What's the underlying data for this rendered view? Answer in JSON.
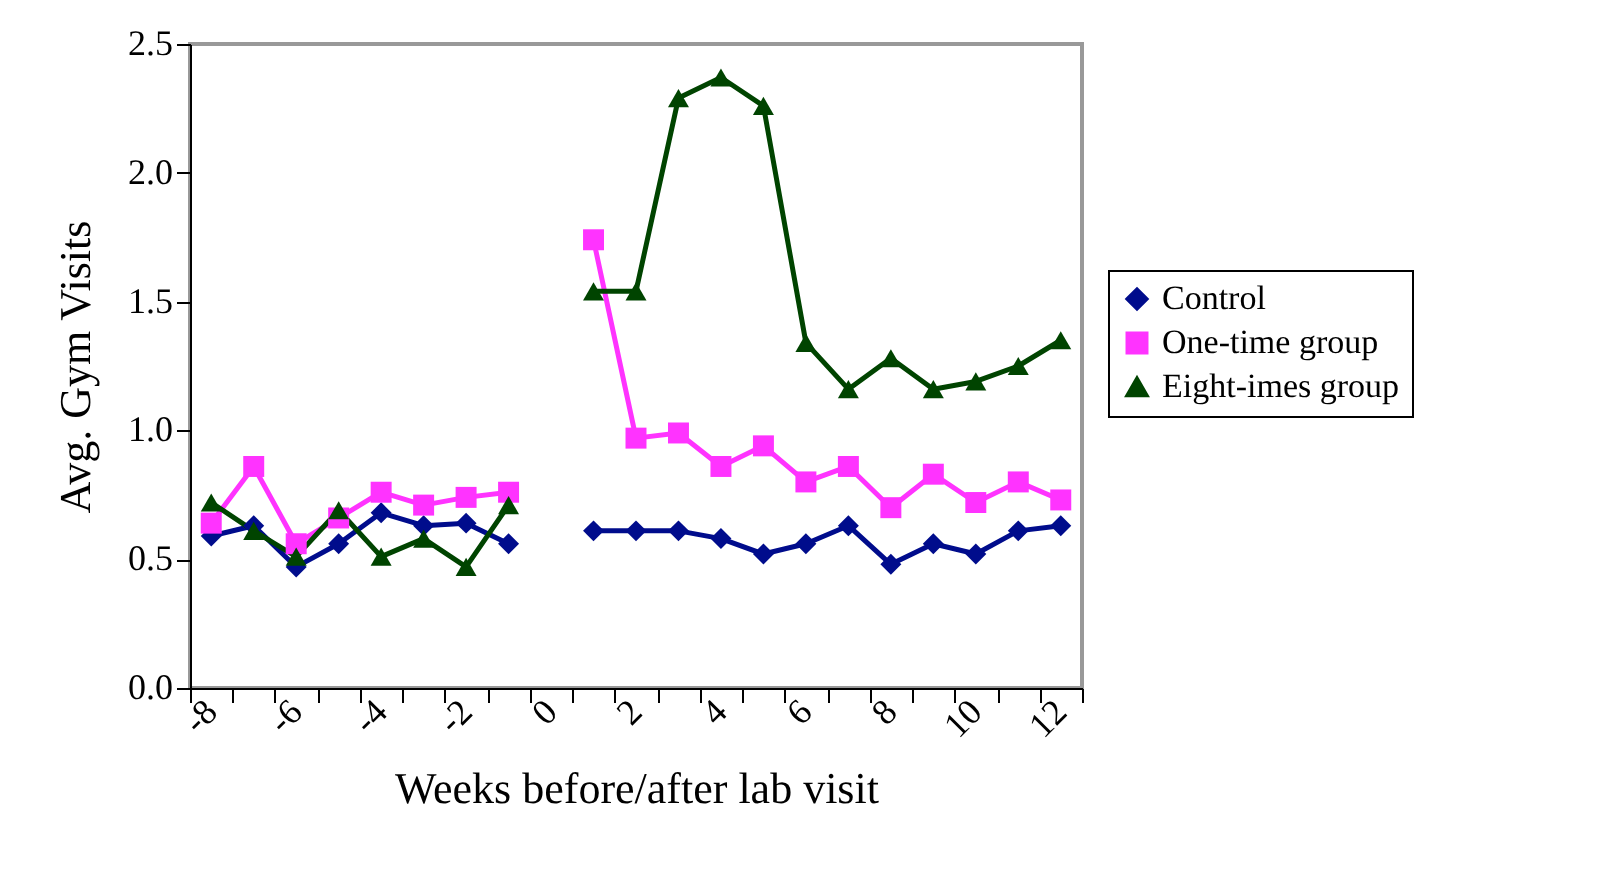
{
  "chart_data": {
    "type": "line",
    "xlabel": "Weeks before/after lab visit",
    "ylabel": "Avg. Gym Visits",
    "categories": [
      "-8",
      null,
      "-6",
      null,
      "-4",
      null,
      "-2",
      null,
      "0",
      null,
      "2",
      null,
      "4",
      null,
      "6",
      null,
      "8",
      null,
      "10",
      null,
      "12"
    ],
    "series": [
      {
        "name": "Control",
        "color": "#000c8c",
        "marker": "diamond",
        "values": [
          0.59,
          0.63,
          0.47,
          0.56,
          0.68,
          0.63,
          0.64,
          0.56,
          null,
          0.61,
          0.61,
          0.61,
          0.58,
          0.52,
          0.56,
          0.63,
          0.48,
          0.56,
          0.52,
          0.61,
          0.63
        ]
      },
      {
        "name": "One-time group",
        "color": "#ff33ff",
        "marker": "square",
        "values": [
          0.64,
          0.86,
          0.56,
          0.66,
          0.76,
          0.71,
          0.74,
          0.76,
          null,
          1.74,
          0.97,
          0.99,
          0.86,
          0.94,
          0.8,
          0.86,
          0.7,
          0.83,
          0.72,
          0.8,
          0.73
        ]
      },
      {
        "name": "Eight-imes group",
        "color": "#004400",
        "marker": "triangle",
        "values": [
          0.72,
          0.61,
          0.51,
          0.69,
          0.51,
          0.58,
          0.47,
          0.71,
          null,
          1.54,
          1.54,
          2.29,
          2.37,
          2.26,
          1.34,
          1.16,
          1.28,
          1.16,
          1.19,
          1.25,
          1.35
        ]
      }
    ],
    "ylim": [
      0,
      2.5
    ],
    "yticks": [
      {
        "value": 0,
        "label": "0.0"
      },
      {
        "value": 0.5,
        "label": "0.5"
      },
      {
        "value": 1,
        "label": "1.0"
      },
      {
        "value": 1.5,
        "label": "1.5"
      },
      {
        "value": 2,
        "label": "2.0"
      },
      {
        "value": 2.5,
        "label": "2.5"
      }
    ],
    "grid": false,
    "legend": "right",
    "line_style": "solid"
  }
}
